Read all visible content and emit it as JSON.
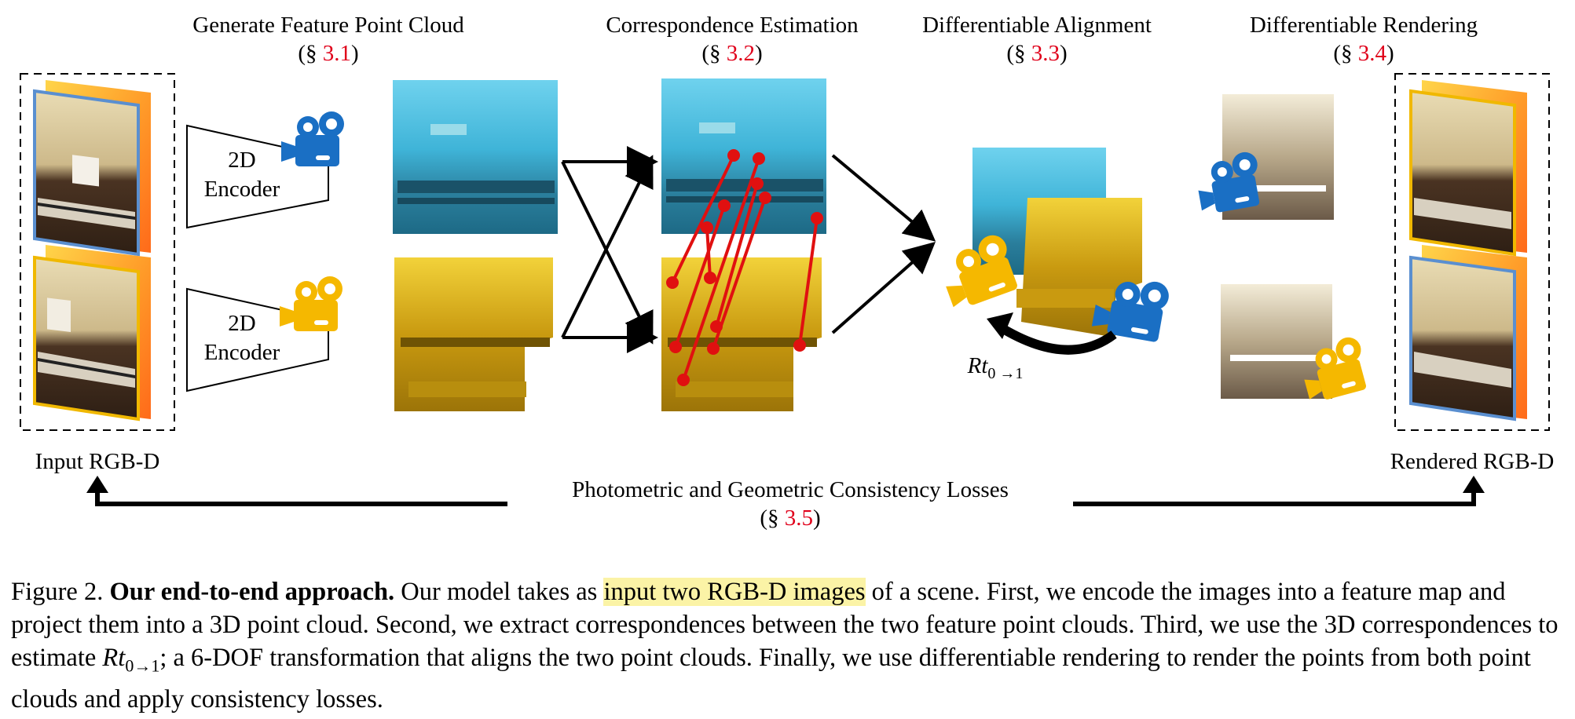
{
  "stages": {
    "generate": {
      "title": "Generate Feature Point Cloud",
      "ref": "3.1"
    },
    "correspondence": {
      "title": "Correspondence Estimation",
      "ref": "3.2"
    },
    "alignment": {
      "title": "Differentiable Alignment",
      "ref": "3.3"
    },
    "rendering": {
      "title": "Differentiable Rendering",
      "ref": "3.4"
    }
  },
  "section_symbol": "§",
  "encoder": {
    "line1": "2D",
    "line2": "Encoder"
  },
  "input_label": "Input RGB-D",
  "output_label": "Rendered RGB-D",
  "loss": {
    "title": "Photometric and Geometric Consistency Losses",
    "ref": "3.5"
  },
  "transform_label": {
    "main": "Rt",
    "sub": "0 →1"
  },
  "colors": {
    "camera_blue": "#1a6fc4",
    "camera_yellow": "#f5b800",
    "match_red": "#e01010",
    "ref_red": "#e0001a",
    "highlight": "#fbf3a6"
  },
  "caption": {
    "figure": "Figure 2.",
    "bold": "Our end-to-end approach.",
    "pre": "Our model takes as",
    "highlight": "input two RGB-D images",
    "post1": "of a scene. First, we encode the images into a feature map and project them into a 3D point cloud. Second, we extract correspondences between the two feature point clouds. Third, we use the 3D correspondences to estimate",
    "math_main": "Rt",
    "math_sub": "0→1",
    "post2": "; a 6-DOF transformation that aligns the two point clouds. Finally, we use differentiable rendering to render the points from both point clouds and apply consistency losses."
  }
}
